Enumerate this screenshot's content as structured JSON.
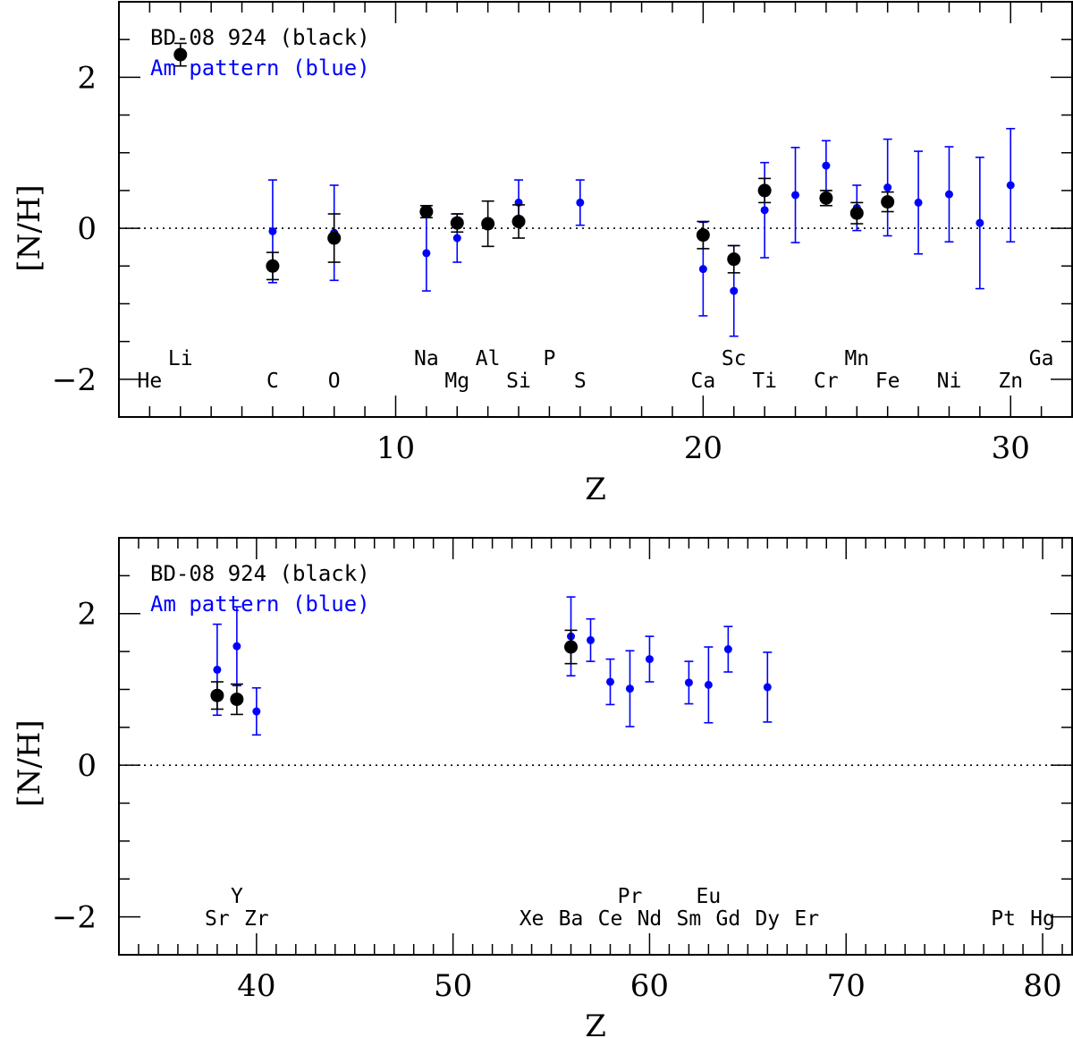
{
  "chart_data": [
    {
      "type": "scatter",
      "xlabel": "Z",
      "ylabel": "[N/H]",
      "xlim": [
        1,
        32
      ],
      "ylim": [
        -2.5,
        3.0
      ],
      "x_ticks": [
        10,
        20,
        30
      ],
      "y_ticks": [
        -2,
        0,
        2
      ],
      "x_tick_labels": [
        "10",
        "20",
        "30"
      ],
      "y_tick_labels": [
        "−2",
        "0",
        "2"
      ],
      "reference_line": 0,
      "legend": [
        {
          "text": "BD-08 924 (black)",
          "color": "#000000"
        },
        {
          "text": "Am pattern (blue)",
          "color": "#0000ff"
        }
      ],
      "element_labels": [
        {
          "z": 2,
          "symbol": "He",
          "row": "lower"
        },
        {
          "z": 3,
          "symbol": "Li",
          "row": "upper"
        },
        {
          "z": 6,
          "symbol": "C",
          "row": "lower"
        },
        {
          "z": 8,
          "symbol": "O",
          "row": "lower"
        },
        {
          "z": 11,
          "symbol": "Na",
          "row": "upper"
        },
        {
          "z": 12,
          "symbol": "Mg",
          "row": "lower"
        },
        {
          "z": 13,
          "symbol": "Al",
          "row": "upper"
        },
        {
          "z": 14,
          "symbol": "Si",
          "row": "lower"
        },
        {
          "z": 15,
          "symbol": "P",
          "row": "upper"
        },
        {
          "z": 16,
          "symbol": "S",
          "row": "lower"
        },
        {
          "z": 20,
          "symbol": "Ca",
          "row": "lower"
        },
        {
          "z": 21,
          "symbol": "Sc",
          "row": "upper"
        },
        {
          "z": 22,
          "symbol": "Ti",
          "row": "lower"
        },
        {
          "z": 24,
          "symbol": "Cr",
          "row": "lower"
        },
        {
          "z": 25,
          "symbol": "Mn",
          "row": "upper"
        },
        {
          "z": 26,
          "symbol": "Fe",
          "row": "lower"
        },
        {
          "z": 28,
          "symbol": "Ni",
          "row": "lower"
        },
        {
          "z": 30,
          "symbol": "Zn",
          "row": "lower"
        },
        {
          "z": 31,
          "symbol": "Ga",
          "row": "upper"
        }
      ],
      "series": [
        {
          "name": "BD-08 924",
          "color": "#000000",
          "points": [
            {
              "z": 3,
              "y": 2.3,
              "err": 0.15
            },
            {
              "z": 6,
              "y": -0.5,
              "err": 0.18
            },
            {
              "z": 8,
              "y": -0.13,
              "err": 0.32
            },
            {
              "z": 11,
              "y": 0.22,
              "err": 0.08
            },
            {
              "z": 12,
              "y": 0.07,
              "err": 0.12
            },
            {
              "z": 13,
              "y": 0.06,
              "err": 0.3
            },
            {
              "z": 14,
              "y": 0.09,
              "err": 0.22
            },
            {
              "z": 20,
              "y": -0.09,
              "err": 0.18
            },
            {
              "z": 21,
              "y": -0.41,
              "err": 0.18
            },
            {
              "z": 22,
              "y": 0.5,
              "err": 0.16
            },
            {
              "z": 24,
              "y": 0.4,
              "err": 0.1
            },
            {
              "z": 25,
              "y": 0.2,
              "err": 0.14
            },
            {
              "z": 26,
              "y": 0.35,
              "err": 0.13
            }
          ]
        },
        {
          "name": "Am pattern",
          "color": "#0000ff",
          "points": [
            {
              "z": 6,
              "y": -0.04,
              "err": 0.68
            },
            {
              "z": 8,
              "y": -0.06,
              "err": 0.63
            },
            {
              "z": 11,
              "y": -0.33,
              "err": 0.5
            },
            {
              "z": 12,
              "y": -0.13,
              "err": 0.32
            },
            {
              "z": 14,
              "y": 0.34,
              "err": 0.3
            },
            {
              "z": 16,
              "y": 0.34,
              "err": 0.3
            },
            {
              "z": 20,
              "y": -0.54,
              "err": 0.62
            },
            {
              "z": 21,
              "y": -0.83,
              "err": 0.6
            },
            {
              "z": 22,
              "y": 0.24,
              "err": 0.63
            },
            {
              "z": 23,
              "y": 0.44,
              "err": 0.63
            },
            {
              "z": 24,
              "y": 0.83,
              "err": 0.33
            },
            {
              "z": 25,
              "y": 0.27,
              "err": 0.3
            },
            {
              "z": 26,
              "y": 0.54,
              "err": 0.64
            },
            {
              "z": 27,
              "y": 0.34,
              "err": 0.68
            },
            {
              "z": 28,
              "y": 0.45,
              "err": 0.63
            },
            {
              "z": 29,
              "y": 0.07,
              "err": 0.87
            },
            {
              "z": 30,
              "y": 0.57,
              "err": 0.75
            }
          ]
        }
      ]
    },
    {
      "type": "scatter",
      "xlabel": "Z",
      "ylabel": "[N/H]",
      "xlim": [
        33,
        81.5
      ],
      "ylim": [
        -2.5,
        3.0
      ],
      "x_ticks": [
        40,
        50,
        60,
        70,
        80
      ],
      "y_ticks": [
        -2,
        0,
        2
      ],
      "x_tick_labels": [
        "40",
        "50",
        "60",
        "70",
        "80"
      ],
      "y_tick_labels": [
        "−2",
        "0",
        "2"
      ],
      "reference_line": 0,
      "legend": [
        {
          "text": "BD-08 924 (black)",
          "color": "#000000"
        },
        {
          "text": "Am pattern (blue)",
          "color": "#0000ff"
        }
      ],
      "element_labels": [
        {
          "z": 38,
          "symbol": "Sr",
          "row": "lower"
        },
        {
          "z": 39,
          "symbol": "Y",
          "row": "upper"
        },
        {
          "z": 40,
          "symbol": "Zr",
          "row": "lower"
        },
        {
          "z": 54,
          "symbol": "Xe",
          "row": "lower"
        },
        {
          "z": 56,
          "symbol": "Ba",
          "row": "lower"
        },
        {
          "z": 58,
          "symbol": "Ce",
          "row": "lower"
        },
        {
          "z": 59,
          "symbol": "Pr",
          "row": "upper"
        },
        {
          "z": 60,
          "symbol": "Nd",
          "row": "lower"
        },
        {
          "z": 62,
          "symbol": "Sm",
          "row": "lower"
        },
        {
          "z": 63,
          "symbol": "Eu",
          "row": "upper"
        },
        {
          "z": 64,
          "symbol": "Gd",
          "row": "lower"
        },
        {
          "z": 66,
          "symbol": "Dy",
          "row": "lower"
        },
        {
          "z": 68,
          "symbol": "Er",
          "row": "lower"
        },
        {
          "z": 78,
          "symbol": "Pt",
          "row": "lower"
        },
        {
          "z": 80,
          "symbol": "Hg",
          "row": "lower"
        }
      ],
      "series": [
        {
          "name": "BD-08 924",
          "color": "#000000",
          "points": [
            {
              "z": 38,
              "y": 0.92,
              "err": 0.18
            },
            {
              "z": 39,
              "y": 0.87,
              "err": 0.2
            },
            {
              "z": 56,
              "y": 1.56,
              "err": 0.22
            }
          ]
        },
        {
          "name": "Am pattern",
          "color": "#0000ff",
          "points": [
            {
              "z": 38,
              "y": 1.26,
              "err": 0.6
            },
            {
              "z": 39,
              "y": 1.57,
              "err": 0.52
            },
            {
              "z": 40,
              "y": 0.71,
              "err": 0.31
            },
            {
              "z": 56,
              "y": 1.7,
              "err": 0.52
            },
            {
              "z": 57,
              "y": 1.65,
              "err": 0.28
            },
            {
              "z": 58,
              "y": 1.1,
              "err": 0.3
            },
            {
              "z": 59,
              "y": 1.01,
              "err": 0.5
            },
            {
              "z": 60,
              "y": 1.4,
              "err": 0.3
            },
            {
              "z": 62,
              "y": 1.09,
              "err": 0.28
            },
            {
              "z": 63,
              "y": 1.06,
              "err": 0.5
            },
            {
              "z": 64,
              "y": 1.53,
              "err": 0.3
            },
            {
              "z": 66,
              "y": 1.03,
              "err": 0.46
            }
          ]
        }
      ]
    }
  ]
}
